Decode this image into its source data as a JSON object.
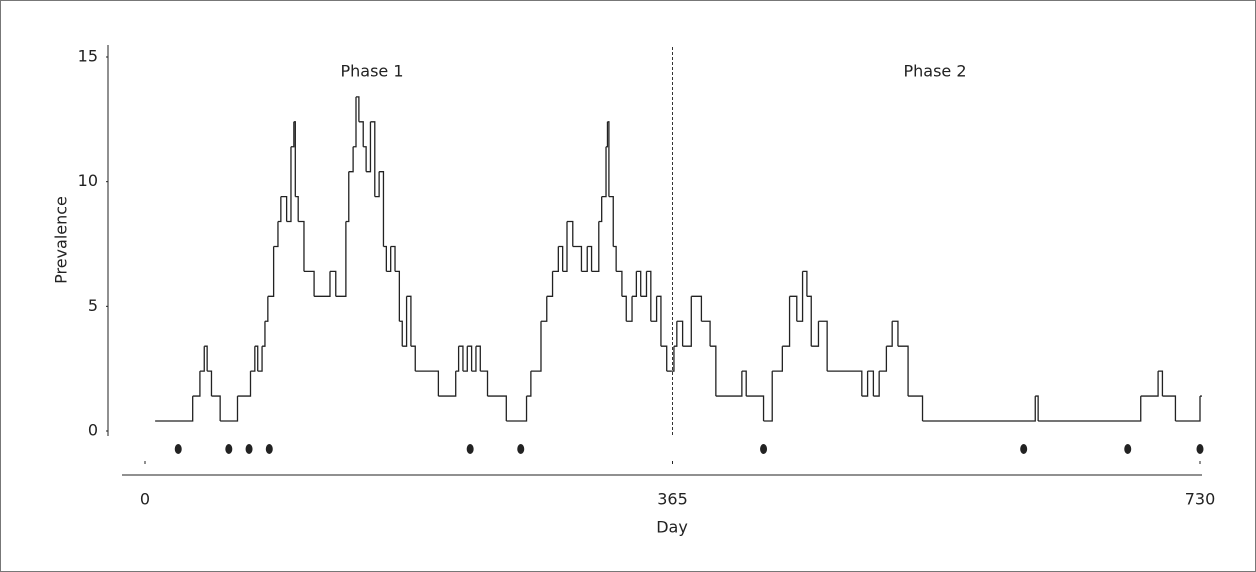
{
  "chart_data": {
    "type": "line",
    "step": true,
    "y_label": "Prevalence",
    "x_label": "Day",
    "annotations": [
      "Phase 1",
      "Phase 2"
    ],
    "divider_x": 365,
    "color": "#222222",
    "x": [
      7,
      33,
      38,
      41,
      43,
      46,
      52,
      64,
      73,
      76,
      78,
      81,
      83,
      85,
      89,
      92,
      94,
      98,
      101,
      103,
      104,
      106,
      110,
      117,
      128,
      132,
      139,
      141,
      144,
      146,
      148,
      151,
      153,
      156,
      159,
      162,
      165,
      167,
      170,
      173,
      176,
      178,
      181,
      184,
      187,
      203,
      215,
      217,
      220,
      223,
      226,
      229,
      232,
      237,
      250,
      264,
      267,
      274,
      278,
      282,
      286,
      289,
      292,
      296,
      302,
      306,
      309,
      314,
      316,
      319,
      320,
      321,
      324,
      326,
      330,
      333,
      337,
      340,
      343,
      347,
      350,
      354,
      357,
      361,
      364,
      366,
      368,
      372,
      378,
      385,
      391,
      395,
      413,
      416,
      428,
      434,
      441,
      446,
      451,
      455,
      458,
      461,
      466,
      472,
      496,
      500,
      504,
      508,
      513,
      517,
      521,
      528,
      538,
      616,
      618,
      689,
      701,
      704,
      713,
      730
    ],
    "values": [
      0,
      1,
      2,
      3,
      2,
      1,
      0,
      1,
      2,
      3,
      2,
      3,
      4,
      5,
      7,
      8,
      9,
      8,
      11,
      12,
      9,
      8,
      6,
      5,
      6,
      5,
      8,
      10,
      11,
      13,
      12,
      11,
      10,
      12,
      9,
      10,
      7,
      6,
      7,
      6,
      4,
      3,
      5,
      3,
      2,
      1,
      2,
      3,
      2,
      3,
      2,
      3,
      2,
      1,
      0,
      1,
      2,
      4,
      5,
      6,
      7,
      6,
      8,
      7,
      6,
      7,
      6,
      8,
      9,
      11,
      12,
      9,
      7,
      6,
      5,
      4,
      5,
      6,
      5,
      6,
      4,
      5,
      3,
      2,
      2,
      3,
      4,
      3,
      5,
      4,
      3,
      1,
      2,
      1,
      0,
      2,
      3,
      5,
      4,
      6,
      5,
      3,
      4,
      2,
      1,
      2,
      1,
      2,
      3,
      4,
      3,
      1,
      0,
      1,
      0,
      1,
      2,
      1,
      0,
      1
    ],
    "event_days": [
      23,
      58,
      72,
      86,
      225,
      260,
      428,
      608,
      680,
      730
    ],
    "xlim": [
      0,
      730
    ],
    "ylim": [
      0,
      15
    ],
    "xticks": [
      0,
      365,
      730
    ],
    "yticks": [
      0,
      5,
      10,
      15
    ]
  }
}
